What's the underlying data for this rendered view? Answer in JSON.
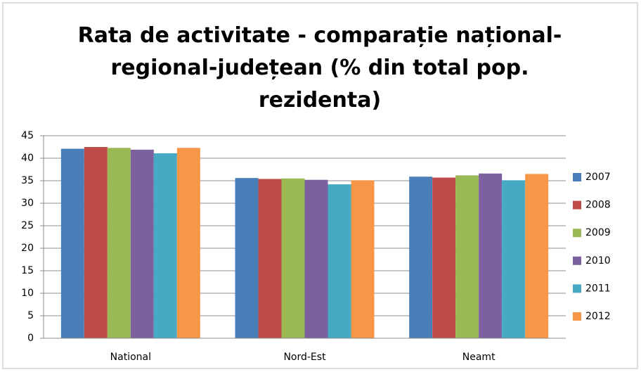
{
  "chart_data": {
    "type": "bar",
    "title": "Rata de activitate - comparație național-regional-județean (% din total pop. rezidenta)",
    "categories": [
      "National",
      "Nord-Est",
      "Neamt"
    ],
    "series": [
      {
        "name": "2007",
        "color": "#4a7ebb",
        "values": [
          42.1,
          35.6,
          35.9
        ]
      },
      {
        "name": "2008",
        "color": "#be4b48",
        "values": [
          42.5,
          35.4,
          35.7
        ]
      },
      {
        "name": "2009",
        "color": "#98b954",
        "values": [
          42.3,
          35.5,
          36.2
        ]
      },
      {
        "name": "2010",
        "color": "#7d60a0",
        "values": [
          41.9,
          35.2,
          36.6
        ]
      },
      {
        "name": "2011",
        "color": "#46aac5",
        "values": [
          41.1,
          34.2,
          35.1
        ]
      },
      {
        "name": "2012",
        "color": "#f79646",
        "values": [
          42.3,
          35.1,
          36.5
        ]
      }
    ],
    "ylim": [
      0,
      45
    ],
    "yticks": [
      0,
      5,
      10,
      15,
      20,
      25,
      30,
      35,
      40,
      45
    ],
    "grid": true,
    "legend": "right"
  }
}
